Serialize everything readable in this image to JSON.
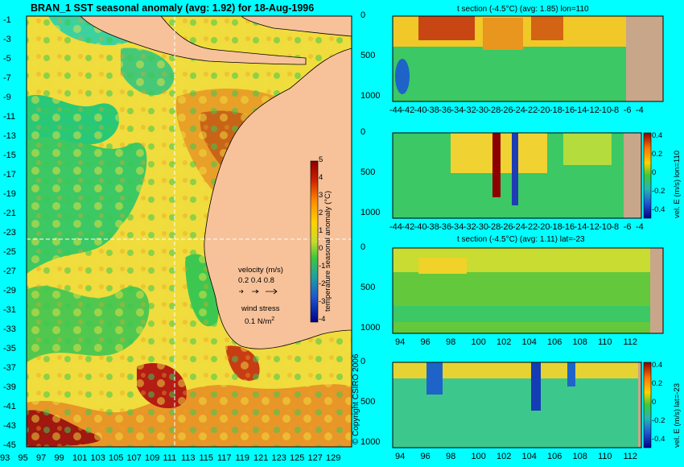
{
  "chart_data": [
    {
      "type": "heatmap",
      "title": "BRAN_1  SST seasonal anomaly (avg: 1.92) for 18-Aug-1996",
      "x_ticks": [
        "93",
        "95",
        "97",
        "99",
        "101",
        "103",
        "105",
        "107",
        "109",
        "111",
        "113",
        "115",
        "117",
        "119",
        "121",
        "123",
        "125",
        "127",
        "129"
      ],
      "y_ticks": [
        "-1",
        "-3",
        "-5",
        "-7",
        "-9",
        "-11",
        "-13",
        "-15",
        "-17",
        "-19",
        "-21",
        "-23",
        "-25",
        "-27",
        "-29",
        "-31",
        "-33",
        "-35",
        "-37",
        "-39",
        "-41",
        "-43",
        "-45"
      ],
      "xlim": [
        93,
        130
      ],
      "ylim": [
        -45,
        0
      ],
      "colorbar": {
        "label": "temperature seasonal anomaly (°C)",
        "ticks": [
          "5",
          "4",
          "3",
          "2",
          "1",
          "0",
          "-1",
          "-2",
          "-3",
          "-4"
        ],
        "range": [
          -4,
          5
        ]
      },
      "legend": {
        "velocity_label": "velocity (m/s)",
        "velocity_values": "0.2 0.4 0.8",
        "wind_label": "wind stress",
        "wind_value": "0.1 N/m",
        "wind_exp": "2"
      },
      "section_lines": {
        "lon": 110,
        "lat": -23
      }
    },
    {
      "type": "heatmap",
      "title": "t section (-4.5°C) (avg: 1.85) lon=110",
      "x_ticks": [
        "-44",
        "-42",
        "-40",
        "-38",
        "-36",
        "-34",
        "-32",
        "-30",
        "-28",
        "-26",
        "-24",
        "-22",
        "-20",
        "-18",
        "-16",
        "-14",
        "-12",
        "-10",
        "-8",
        "-6",
        "-4"
      ],
      "y_ticks": [
        "0",
        "500",
        "1000"
      ],
      "xlim": [
        -45,
        -2
      ],
      "ylim": [
        1050,
        0
      ]
    },
    {
      "type": "heatmap",
      "title": "",
      "x_ticks": [
        "-44",
        "-42",
        "-40",
        "-38",
        "-36",
        "-34",
        "-32",
        "-30",
        "-28",
        "-26",
        "-24",
        "-22",
        "-20",
        "-18",
        "-16",
        "-14",
        "-12",
        "-10",
        "-8",
        "-6",
        "-4"
      ],
      "y_ticks": [
        "0",
        "500",
        "1000"
      ],
      "colorbar": {
        "label": "vel. E (m/s) lon=110",
        "ticks": [
          "0.4",
          "0.2",
          "0",
          "-0.2",
          "-0.4"
        ],
        "range": [
          -0.45,
          0.45
        ]
      }
    },
    {
      "type": "heatmap",
      "title": "t section (-4.5°C) (avg: 1.11) lat=-23",
      "x_ticks": [
        "94",
        "96",
        "98",
        "100",
        "102",
        "104",
        "106",
        "108",
        "110",
        "112"
      ],
      "y_ticks": [
        "0",
        "500",
        "1000"
      ],
      "xlim": [
        92.5,
        114
      ],
      "ylim": [
        1050,
        0
      ]
    },
    {
      "type": "heatmap",
      "title": "",
      "x_ticks": [
        "94",
        "96",
        "98",
        "100",
        "102",
        "104",
        "106",
        "108",
        "110",
        "112"
      ],
      "y_ticks": [
        "0",
        "500",
        "1000"
      ],
      "colorbar": {
        "label": "vel. E (m/s) lat=-23",
        "ticks": [
          "0.4",
          "0.2",
          "0",
          "-0.2",
          "-0.4"
        ],
        "range": [
          -0.45,
          0.45
        ]
      }
    }
  ],
  "copyright": "© Copyright CSIRO 2006"
}
